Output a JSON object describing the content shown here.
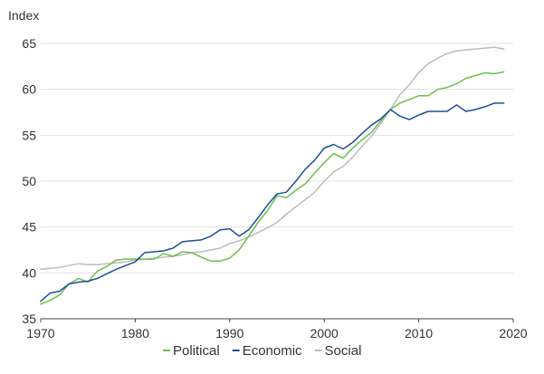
{
  "chart_data": {
    "type": "line",
    "ylabel": "Index",
    "xlabel": "",
    "xlim": [
      1970,
      2020
    ],
    "ylim": [
      35,
      65
    ],
    "x_ticks": [
      1970,
      1980,
      1990,
      2000,
      2010,
      2020
    ],
    "y_ticks": [
      35,
      40,
      45,
      50,
      55,
      60,
      65
    ],
    "grid": "horizontal",
    "legend_position": "bottom",
    "x": [
      1970,
      1971,
      1972,
      1973,
      1974,
      1975,
      1976,
      1977,
      1978,
      1979,
      1980,
      1981,
      1982,
      1983,
      1984,
      1985,
      1986,
      1987,
      1988,
      1989,
      1990,
      1991,
      1992,
      1993,
      1994,
      1995,
      1996,
      1997,
      1998,
      1999,
      2000,
      2001,
      2002,
      2003,
      2004,
      2005,
      2006,
      2007,
      2008,
      2009,
      2010,
      2011,
      2012,
      2013,
      2014,
      2015,
      2016,
      2017,
      2018,
      2019
    ],
    "series": [
      {
        "name": "Political",
        "color": "#6dbf4b",
        "values": [
          36.6,
          37.0,
          37.6,
          38.8,
          39.4,
          39.0,
          40.2,
          40.7,
          41.4,
          41.5,
          41.5,
          41.5,
          41.5,
          42.1,
          41.8,
          42.3,
          42.2,
          41.7,
          41.3,
          41.3,
          41.6,
          42.5,
          44.0,
          45.5,
          46.8,
          48.4,
          48.2,
          49.0,
          49.7,
          50.9,
          52.0,
          53.0,
          52.5,
          53.6,
          54.5,
          55.3,
          56.6,
          57.8,
          58.5,
          58.9,
          59.3,
          59.3,
          60.0,
          60.2,
          60.6,
          61.2,
          61.5,
          61.8,
          61.7,
          61.9
        ]
      },
      {
        "name": "Economic",
        "color": "#1f4e9a",
        "values": [
          36.9,
          37.8,
          38.0,
          38.8,
          39.0,
          39.1,
          39.4,
          39.9,
          40.4,
          40.8,
          41.2,
          42.2,
          42.3,
          42.4,
          42.7,
          43.4,
          43.5,
          43.6,
          44.0,
          44.7,
          44.8,
          44.0,
          44.7,
          46.0,
          47.4,
          48.6,
          48.8,
          50.0,
          51.3,
          52.3,
          53.6,
          54.0,
          53.5,
          54.2,
          55.2,
          56.1,
          56.8,
          57.8,
          57.1,
          56.7,
          57.2,
          57.6,
          57.6,
          57.6,
          58.3,
          57.6,
          57.8,
          58.1,
          58.5,
          58.5
        ]
      },
      {
        "name": "Social",
        "color": "#bdbdbd",
        "values": [
          40.4,
          40.5,
          40.6,
          40.8,
          41.0,
          40.9,
          40.9,
          41.0,
          41.1,
          41.2,
          41.4,
          41.5,
          41.6,
          41.7,
          41.8,
          42.0,
          42.2,
          42.3,
          42.5,
          42.7,
          43.2,
          43.5,
          43.9,
          44.4,
          44.9,
          45.5,
          46.4,
          47.2,
          48.0,
          48.8,
          50.0,
          51.0,
          51.6,
          52.6,
          53.8,
          54.9,
          56.3,
          57.8,
          59.4,
          60.5,
          61.8,
          62.8,
          63.4,
          63.9,
          64.2,
          64.3,
          64.4,
          64.5,
          64.6,
          64.4
        ]
      }
    ]
  }
}
